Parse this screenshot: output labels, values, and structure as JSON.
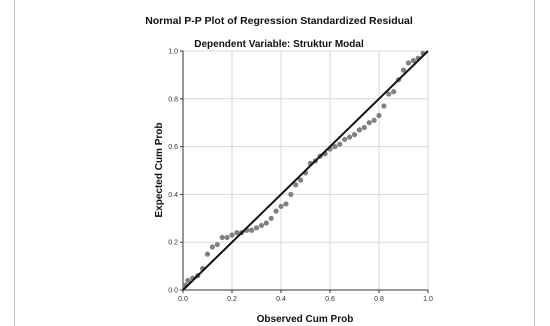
{
  "chart_data": {
    "type": "scatter",
    "title": "Normal P-P Plot of Regression Standardized Residual",
    "subtitle": "Dependent Variable: Struktur Modal",
    "xlabel": "Observed Cum Prob",
    "ylabel": "Expected Cum Prob",
    "xlim": [
      0.0,
      1.0
    ],
    "ylim": [
      0.0,
      1.0
    ],
    "xticks": [
      "0.0",
      "0.2",
      "0.4",
      "0.6",
      "0.8",
      "1.0"
    ],
    "yticks": [
      "0.0",
      "0.2",
      "0.4",
      "0.6",
      "0.8",
      "1.0"
    ],
    "grid": true,
    "reference_line": [
      [
        0.0,
        0.0
      ],
      [
        1.0,
        1.0
      ]
    ],
    "points": [
      [
        0.01,
        0.02
      ],
      [
        0.02,
        0.04
      ],
      [
        0.04,
        0.05
      ],
      [
        0.06,
        0.06
      ],
      [
        0.08,
        0.09
      ],
      [
        0.1,
        0.15
      ],
      [
        0.12,
        0.18
      ],
      [
        0.14,
        0.19
      ],
      [
        0.16,
        0.22
      ],
      [
        0.18,
        0.22
      ],
      [
        0.2,
        0.23
      ],
      [
        0.22,
        0.24
      ],
      [
        0.24,
        0.24
      ],
      [
        0.26,
        0.25
      ],
      [
        0.28,
        0.25
      ],
      [
        0.3,
        0.26
      ],
      [
        0.32,
        0.27
      ],
      [
        0.34,
        0.28
      ],
      [
        0.36,
        0.3
      ],
      [
        0.38,
        0.33
      ],
      [
        0.4,
        0.35
      ],
      [
        0.42,
        0.36
      ],
      [
        0.44,
        0.4
      ],
      [
        0.46,
        0.44
      ],
      [
        0.48,
        0.46
      ],
      [
        0.5,
        0.49
      ],
      [
        0.52,
        0.53
      ],
      [
        0.54,
        0.54
      ],
      [
        0.56,
        0.56
      ],
      [
        0.58,
        0.57
      ],
      [
        0.6,
        0.59
      ],
      [
        0.62,
        0.6
      ],
      [
        0.64,
        0.61
      ],
      [
        0.66,
        0.63
      ],
      [
        0.68,
        0.64
      ],
      [
        0.7,
        0.65
      ],
      [
        0.72,
        0.67
      ],
      [
        0.74,
        0.68
      ],
      [
        0.76,
        0.7
      ],
      [
        0.78,
        0.71
      ],
      [
        0.8,
        0.73
      ],
      [
        0.82,
        0.77
      ],
      [
        0.84,
        0.82
      ],
      [
        0.86,
        0.83
      ],
      [
        0.88,
        0.88
      ],
      [
        0.9,
        0.92
      ],
      [
        0.92,
        0.95
      ],
      [
        0.94,
        0.96
      ],
      [
        0.96,
        0.97
      ],
      [
        0.98,
        0.99
      ]
    ],
    "colors": {
      "points": "#808080",
      "line": "#111111",
      "grid": "#d9d9d9"
    }
  }
}
